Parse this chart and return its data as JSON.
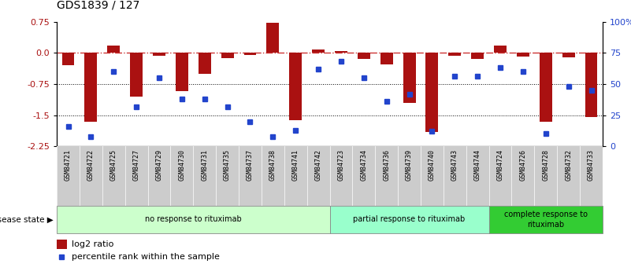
{
  "title": "GDS1839 / 127",
  "samples": [
    "GSM84721",
    "GSM84722",
    "GSM84725",
    "GSM84727",
    "GSM84729",
    "GSM84730",
    "GSM84731",
    "GSM84735",
    "GSM84737",
    "GSM84738",
    "GSM84741",
    "GSM84742",
    "GSM84723",
    "GSM84734",
    "GSM84736",
    "GSM84739",
    "GSM84740",
    "GSM84743",
    "GSM84744",
    "GSM84724",
    "GSM84726",
    "GSM84728",
    "GSM84732",
    "GSM84733"
  ],
  "log2_ratio": [
    -0.3,
    -1.65,
    0.18,
    -1.05,
    -0.07,
    -0.92,
    -0.5,
    -0.12,
    -0.06,
    0.72,
    -1.62,
    0.08,
    0.05,
    -0.15,
    -0.28,
    -1.2,
    -1.9,
    -0.07,
    -0.14,
    0.18,
    -0.08,
    -1.65,
    -0.1,
    -1.55
  ],
  "percentile_rank": [
    16,
    8,
    60,
    32,
    55,
    38,
    38,
    32,
    20,
    8,
    13,
    62,
    68,
    55,
    36,
    42,
    12,
    56,
    56,
    63,
    60,
    10,
    48,
    45
  ],
  "groups": [
    {
      "label": "no response to rituximab",
      "start": 0,
      "end": 12,
      "color": "#ccffcc"
    },
    {
      "label": "partial response to rituximab",
      "start": 12,
      "end": 19,
      "color": "#99ffcc"
    },
    {
      "label": "complete response to\nrituximab",
      "start": 19,
      "end": 24,
      "color": "#33cc33"
    }
  ],
  "ylim_left": [
    -2.25,
    0.75
  ],
  "ylim_right": [
    0,
    100
  ],
  "yticks_left": [
    0.75,
    0.0,
    -0.75,
    -1.5,
    -2.25
  ],
  "yticks_right": [
    100,
    75,
    50,
    25,
    0
  ],
  "bar_color": "#aa1111",
  "dot_color": "#2244cc",
  "hline_color": "#cc3333",
  "legend_bar_label": "log2 ratio",
  "legend_dot_label": "percentile rank within the sample",
  "disease_state_label": "disease state",
  "bar_width": 0.55,
  "label_band_color": "#cccccc",
  "spine_color": "#000000"
}
